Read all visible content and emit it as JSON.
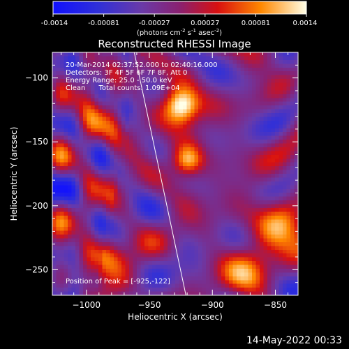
{
  "colorbar": {
    "ticks": [
      "-0.0014",
      "-0.00081",
      "-0.00027",
      "0.00027",
      "0.00081",
      "0.0014"
    ],
    "units_html": "(photons cm<tspan baseline-shift='super' font-size='7'>-2</tspan> s<tspan baseline-shift='super' font-size='7'>-1</tspan> asec<tspan baseline-shift='super' font-size='7'>-2</tspan>)"
  },
  "chart_data": {
    "type": "heatmap",
    "title": "Reconstructed RHESSI Image",
    "xlabel": "Heliocentric X (arcsec)",
    "ylabel": "Heliocentric Y (arcsec)",
    "xlim": [
      -1027,
      -832
    ],
    "ylim": [
      -270,
      -80
    ],
    "x_ticks": [
      -1000,
      -950,
      -900,
      -850
    ],
    "y_ticks": [
      -100,
      -150,
      -200,
      -250
    ],
    "colorbar_range": [
      -0.0014,
      0.0014
    ],
    "annotations": [
      "20-Mar-2014 02:37:52.000 to 02:40:16.000",
      "Detectors: 3F 4F 5F 6F 7F 8F, Att 0",
      "Energy Range: 25.0 - 50.0 keV",
      "Clean      Total counts: 1.09E+04"
    ],
    "peak_label": "Position of Peak = [-925,-122]",
    "peak": [
      -925,
      -122
    ],
    "limb_line": [
      [
        -962,
        -80
      ],
      [
        -921,
        -270
      ]
    ]
  },
  "footer": {
    "date": "14-May-2022 00:33"
  }
}
